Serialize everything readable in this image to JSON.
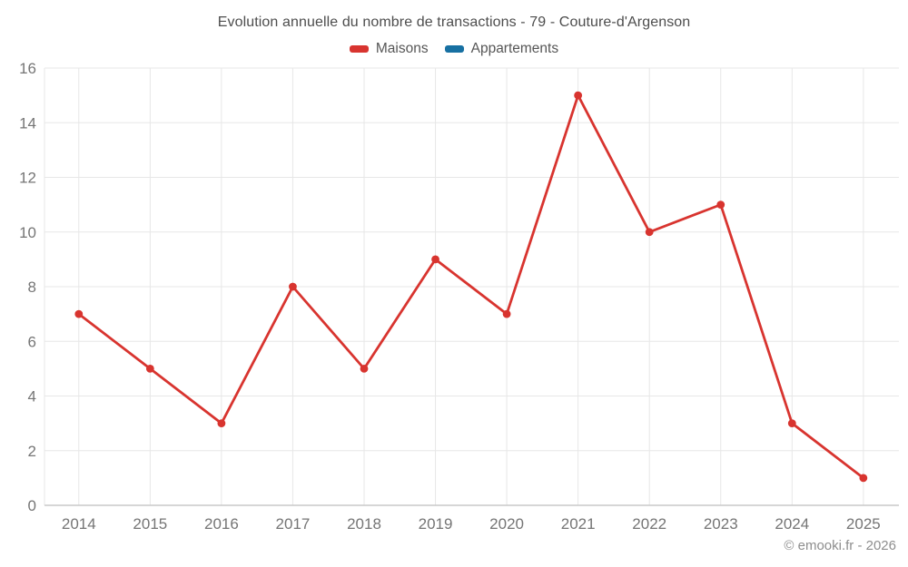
{
  "title": "Evolution annuelle du nombre de transactions - 79 - Couture-d'Argenson",
  "footer": "© emooki.fr - 2026",
  "colors": {
    "maisons_red": "#d8342f",
    "appartements_blue": "#1770a2",
    "grid": "#e7e7e7",
    "axis": "#c9c9c9",
    "title_text": "#4d4d4d",
    "tick_text": "#757575",
    "footer_text": "#8e8e8e",
    "background": "#ffffff"
  },
  "chart_data": {
    "type": "line",
    "title": "Evolution annuelle du nombre de transactions - 79 - Couture-d'Argenson",
    "categories": [
      "2014",
      "2015",
      "2016",
      "2017",
      "2018",
      "2019",
      "2020",
      "2021",
      "2022",
      "2023",
      "2024",
      "2025"
    ],
    "series": [
      {
        "name": "Maisons",
        "color": "#d8342f",
        "values": [
          7,
          5,
          3,
          8,
          5,
          9,
          7,
          15,
          10,
          11,
          3,
          1
        ]
      },
      {
        "name": "Appartements",
        "color": "#1770a2",
        "values": []
      }
    ],
    "ylim": [
      0,
      16
    ],
    "y_ticks": [
      0,
      2,
      4,
      6,
      8,
      10,
      12,
      14,
      16
    ],
    "grid": true,
    "legend_position": "top",
    "markers": true
  }
}
